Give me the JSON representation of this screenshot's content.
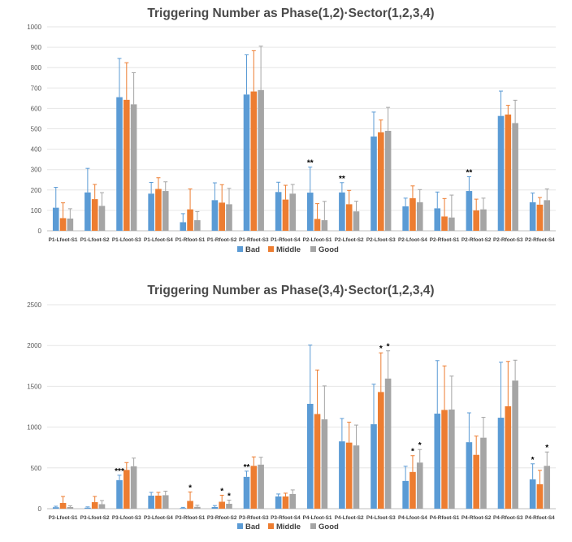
{
  "colors": {
    "Bad": "#5B9BD5",
    "Middle": "#ED7D31",
    "Good": "#A5A5A5"
  },
  "chart_data": [
    {
      "type": "bar",
      "title": "Triggering Number as Phase(1,2)·Sector(1,2,3,4)",
      "xlabel": "",
      "ylabel": "",
      "ylim": [
        0,
        1000
      ],
      "yticks": [
        "0",
        "100",
        "200",
        "300",
        "400",
        "500",
        "600",
        "700",
        "800",
        "900",
        "1000"
      ],
      "grid": true,
      "legend_position": "bottom",
      "categories": [
        "P1-Lfoot-S1",
        "P1-Lfoot-S2",
        "P1-Lfoot-S3",
        "P1-Lfoot-S4",
        "P1-Rfoot-S1",
        "P1-Rfoot-S2",
        "P1-Rfoot-S3",
        "P1-Rfoot-S4",
        "P2-Lfoot-S1",
        "P2-Lfoot-S2",
        "P2-Lfoot-S3",
        "P2-Lfoot-S4",
        "P2-Rfoot-S1",
        "P2-Rfoot-S2",
        "P2-Rfoot-S3",
        "P2-Rfoot-S4"
      ],
      "series": [
        {
          "name": "Bad",
          "values": [
            113,
            188,
            655,
            182,
            42,
            150,
            668,
            190,
            187,
            188,
            462,
            120,
            110,
            195,
            563,
            140
          ],
          "errors": [
            100,
            118,
            190,
            55,
            42,
            85,
            195,
            48,
            125,
            48,
            120,
            40,
            80,
            70,
            122,
            45
          ]
        },
        {
          "name": "Middle",
          "values": [
            62,
            155,
            642,
            205,
            105,
            138,
            683,
            153,
            58,
            130,
            483,
            160,
            70,
            100,
            570,
            128
          ],
          "errors": [
            75,
            72,
            182,
            55,
            100,
            88,
            200,
            70,
            75,
            68,
            60,
            60,
            88,
            55,
            45,
            35
          ]
        },
        {
          "name": "Good",
          "values": [
            60,
            122,
            620,
            195,
            52,
            130,
            690,
            182,
            52,
            95,
            490,
            140,
            65,
            105,
            528,
            150
          ],
          "errors": [
            48,
            65,
            155,
            45,
            42,
            78,
            215,
            45,
            92,
            50,
            115,
            62,
            110,
            55,
            112,
            55
          ]
        }
      ],
      "annotations": [
        {
          "category": "P2-Lfoot-S1",
          "series": "Bad",
          "text": "**"
        },
        {
          "category": "P2-Lfoot-S2",
          "series": "Bad",
          "text": "**"
        },
        {
          "category": "P2-Rfoot-S2",
          "series": "Bad",
          "text": "**"
        }
      ],
      "legend": [
        "Bad",
        "Middle",
        "Good"
      ]
    },
    {
      "type": "bar",
      "title": "Triggering Number as Phase(3,4)·Sector(1,2,3,4)",
      "xlabel": "",
      "ylabel": "",
      "ylim": [
        0,
        2500
      ],
      "yticks": [
        "0",
        "500",
        "1000",
        "1500",
        "2000",
        "2500"
      ],
      "grid": true,
      "legend_position": "bottom",
      "categories": [
        "P3-Lfoot-S1",
        "P3-Lfoot-S2",
        "P3-Lfoot-S3",
        "P3-Lfoot-S4",
        "P3-Rfoot-S1",
        "P3-Rfoot-S2",
        "P3-Rfoot-S3",
        "P3-Rfoot-S4",
        "P4-Lfoot-S1",
        "P4-Lfoot-S2",
        "P4-Lfoot-S3",
        "P4-Lfoot-S4",
        "P4-Rfoot-S1",
        "P4-Rfoot-S2",
        "P4-Rfoot-S3",
        "P4-Rfoot-S4"
      ],
      "series": [
        {
          "name": "Bad",
          "values": [
            18,
            12,
            350,
            160,
            8,
            20,
            390,
            150,
            1285,
            825,
            1035,
            340,
            1165,
            815,
            1115,
            360
          ],
          "errors": [
            12,
            10,
            60,
            40,
            8,
            18,
            70,
            30,
            720,
            280,
            490,
            180,
            650,
            360,
            680,
            190
          ]
        },
        {
          "name": "Middle",
          "values": [
            70,
            80,
            475,
            160,
            95,
            85,
            525,
            150,
            1160,
            810,
            1430,
            450,
            1210,
            660,
            1255,
            300
          ],
          "errors": [
            80,
            70,
            90,
            40,
            110,
            80,
            110,
            40,
            540,
            250,
            480,
            200,
            540,
            230,
            550,
            170
          ]
        },
        {
          "name": "Good",
          "values": [
            20,
            55,
            520,
            165,
            22,
            60,
            540,
            180,
            1095,
            775,
            1595,
            565,
            1215,
            870,
            1570,
            525
          ],
          "errors": [
            15,
            45,
            100,
            50,
            20,
            45,
            90,
            50,
            410,
            250,
            340,
            160,
            410,
            250,
            250,
            170
          ]
        }
      ],
      "annotations": [
        {
          "category": "P3-Lfoot-S3",
          "series": "Bad",
          "text": "***"
        },
        {
          "category": "P3-Rfoot-S1",
          "series": "Middle",
          "text": "*"
        },
        {
          "category": "P3-Rfoot-S2",
          "series": "Middle",
          "text": "*"
        },
        {
          "category": "P3-Rfoot-S2",
          "series": "Good",
          "text": "*"
        },
        {
          "category": "P3-Rfoot-S3",
          "series": "Bad",
          "text": "**"
        },
        {
          "category": "P4-Lfoot-S3",
          "series": "Middle",
          "text": "*"
        },
        {
          "category": "P4-Lfoot-S3",
          "series": "Good",
          "text": "*"
        },
        {
          "category": "P4-Lfoot-S4",
          "series": "Middle",
          "text": "*"
        },
        {
          "category": "P4-Lfoot-S4",
          "series": "Good",
          "text": "*"
        },
        {
          "category": "P4-Rfoot-S4",
          "series": "Bad",
          "text": "*"
        },
        {
          "category": "P4-Rfoot-S4",
          "series": "Good",
          "text": "*"
        }
      ],
      "legend": [
        "Bad",
        "Middle",
        "Good"
      ]
    }
  ]
}
